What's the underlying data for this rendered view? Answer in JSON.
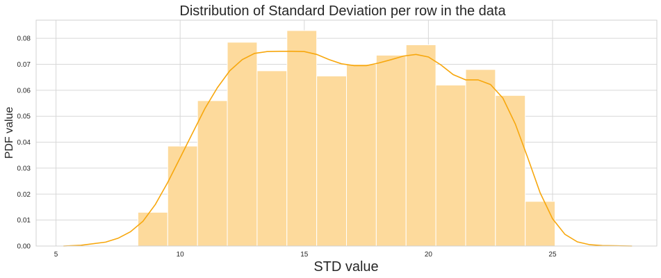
{
  "chart_data": {
    "type": "bar",
    "subtype": "histogram-with-kde",
    "title": "Distribution of Standard Deviation per row in the data",
    "xlabel": "STD value",
    "ylabel": "PDF value",
    "xlim": [
      4.2,
      29.2
    ],
    "ylim": [
      0,
      0.087
    ],
    "xticks": [
      5,
      10,
      15,
      20,
      25
    ],
    "yticks": [
      0.0,
      0.01,
      0.02,
      0.03,
      0.04,
      0.05,
      0.06,
      0.07,
      0.08
    ],
    "ytick_labels": [
      "0.00",
      "0.01",
      "0.02",
      "0.03",
      "0.04",
      "0.05",
      "0.06",
      "0.07",
      "0.08"
    ],
    "grid": true,
    "bins": [
      {
        "x0": 8.3,
        "x1": 9.5,
        "value": 0.013
      },
      {
        "x0": 9.5,
        "x1": 10.7,
        "value": 0.0385
      },
      {
        "x0": 10.7,
        "x1": 11.9,
        "value": 0.056
      },
      {
        "x0": 11.9,
        "x1": 13.1,
        "value": 0.0785
      },
      {
        "x0": 13.1,
        "x1": 14.3,
        "value": 0.0675
      },
      {
        "x0": 14.3,
        "x1": 15.5,
        "value": 0.083
      },
      {
        "x0": 15.5,
        "x1": 16.7,
        "value": 0.0655
      },
      {
        "x0": 16.7,
        "x1": 17.9,
        "value": 0.07
      },
      {
        "x0": 17.9,
        "x1": 19.1,
        "value": 0.0735
      },
      {
        "x0": 19.1,
        "x1": 20.3,
        "value": 0.0775
      },
      {
        "x0": 20.3,
        "x1": 21.5,
        "value": 0.062
      },
      {
        "x0": 21.5,
        "x1": 22.7,
        "value": 0.068
      },
      {
        "x0": 22.7,
        "x1": 23.9,
        "value": 0.058
      },
      {
        "x0": 23.9,
        "x1": 25.1,
        "value": 0.0172
      }
    ],
    "kde": {
      "x": [
        5.3,
        6.0,
        7.0,
        7.5,
        8.0,
        8.5,
        9.0,
        9.5,
        10.0,
        10.5,
        11.0,
        11.5,
        12.0,
        12.5,
        13.0,
        13.5,
        14.0,
        14.5,
        15.0,
        15.5,
        16.0,
        16.5,
        17.0,
        17.5,
        18.0,
        18.5,
        19.0,
        19.5,
        20.0,
        20.5,
        21.0,
        21.5,
        22.0,
        22.5,
        23.0,
        23.5,
        24.0,
        24.5,
        25.0,
        25.5,
        26.0,
        26.5,
        27.0,
        28.2
      ],
      "y": [
        0.0,
        0.0003,
        0.0015,
        0.003,
        0.0055,
        0.0095,
        0.016,
        0.0245,
        0.034,
        0.0435,
        0.053,
        0.061,
        0.0675,
        0.0718,
        0.0742,
        0.0749,
        0.075,
        0.075,
        0.0749,
        0.0738,
        0.0718,
        0.0702,
        0.0695,
        0.0695,
        0.0705,
        0.0718,
        0.0732,
        0.0738,
        0.0728,
        0.0698,
        0.066,
        0.064,
        0.064,
        0.0622,
        0.057,
        0.047,
        0.034,
        0.0205,
        0.0105,
        0.0045,
        0.0016,
        0.0005,
        0.0002,
        0.0
      ]
    },
    "colors": {
      "bar_fill": "#fdd99a",
      "bar_edge": "#ffffff",
      "kde_line": "#f7a70d",
      "grid": "#d7d7d7",
      "axes_edge": "#d0d0d0"
    }
  }
}
